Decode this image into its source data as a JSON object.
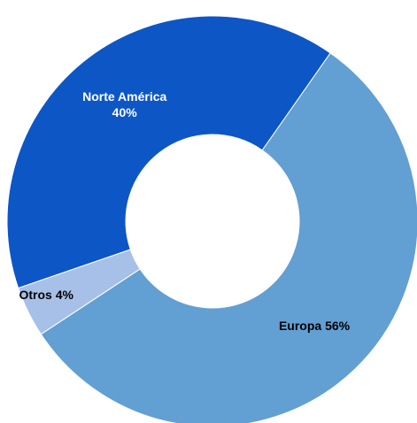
{
  "chart_data": {
    "type": "donut",
    "categories": [
      "Europa",
      "Otros",
      "Norte América"
    ],
    "values": [
      56,
      4,
      40
    ],
    "value_labels": [
      "56%",
      "4%",
      "40%"
    ],
    "colors": [
      "#629fd3",
      "#a7c0e8",
      "#0d56c6"
    ]
  }
}
